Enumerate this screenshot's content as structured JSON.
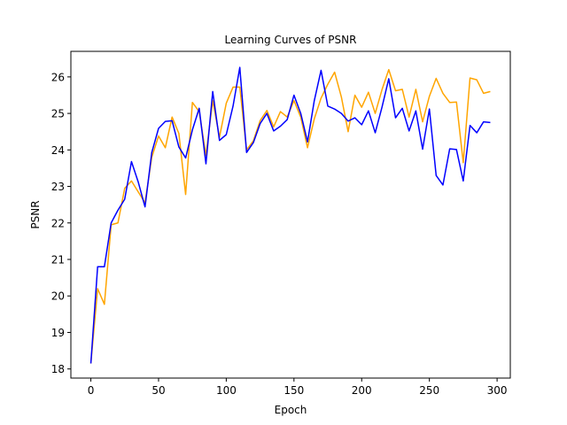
{
  "chart_data": {
    "type": "line",
    "title": "Learning Curves of PSNR",
    "xlabel": "Epoch",
    "ylabel": "PSNR",
    "xlim": [
      -14.75,
      309.75
    ],
    "ylim": [
      17.75,
      26.7
    ],
    "xticks": [
      0,
      50,
      100,
      150,
      200,
      250,
      300
    ],
    "yticks": [
      18,
      19,
      20,
      21,
      22,
      23,
      24,
      25,
      26
    ],
    "grid": false,
    "legend": "none",
    "x": [
      0,
      5,
      10,
      15,
      20,
      25,
      30,
      35,
      40,
      45,
      50,
      55,
      60,
      65,
      70,
      75,
      80,
      85,
      90,
      95,
      100,
      105,
      110,
      115,
      120,
      125,
      130,
      135,
      140,
      145,
      150,
      155,
      160,
      165,
      170,
      175,
      180,
      185,
      190,
      195,
      200,
      205,
      210,
      215,
      220,
      225,
      230,
      235,
      240,
      245,
      250,
      255,
      260,
      265,
      270,
      275,
      280,
      285,
      290,
      295
    ],
    "series": [
      {
        "color": "#ffa500",
        "values": [
          18.15,
          20.2,
          19.77,
          21.95,
          22.0,
          22.95,
          23.15,
          22.85,
          22.55,
          23.8,
          24.38,
          24.06,
          24.9,
          24.45,
          22.78,
          25.3,
          25.05,
          23.85,
          25.35,
          24.35,
          25.28,
          25.72,
          25.72,
          24.0,
          24.25,
          24.8,
          25.08,
          24.63,
          25.05,
          24.9,
          25.35,
          24.9,
          24.06,
          24.85,
          25.42,
          25.8,
          26.13,
          25.45,
          24.5,
          25.5,
          25.17,
          25.58,
          25.0,
          25.65,
          26.2,
          25.62,
          25.66,
          24.9,
          25.66,
          24.77,
          25.47,
          25.96,
          25.55,
          25.3,
          25.31,
          23.65,
          25.97,
          25.92,
          25.55,
          25.6
        ]
      },
      {
        "color": "#0000ff",
        "values": [
          18.15,
          20.8,
          20.8,
          22.0,
          22.35,
          22.65,
          23.68,
          23.12,
          22.44,
          23.93,
          24.59,
          24.78,
          24.8,
          24.08,
          23.78,
          24.55,
          25.14,
          23.62,
          25.6,
          24.26,
          24.42,
          25.2,
          26.26,
          23.93,
          24.2,
          24.72,
          25.0,
          24.52,
          24.65,
          24.83,
          25.5,
          25.0,
          24.22,
          25.35,
          26.18,
          25.2,
          25.12,
          25.0,
          24.79,
          24.88,
          24.69,
          25.07,
          24.47,
          25.17,
          25.95,
          24.88,
          25.14,
          24.52,
          25.07,
          24.02,
          25.12,
          23.3,
          23.04,
          24.03,
          24.01,
          23.15,
          24.67,
          24.47,
          24.77,
          24.75
        ]
      }
    ]
  }
}
